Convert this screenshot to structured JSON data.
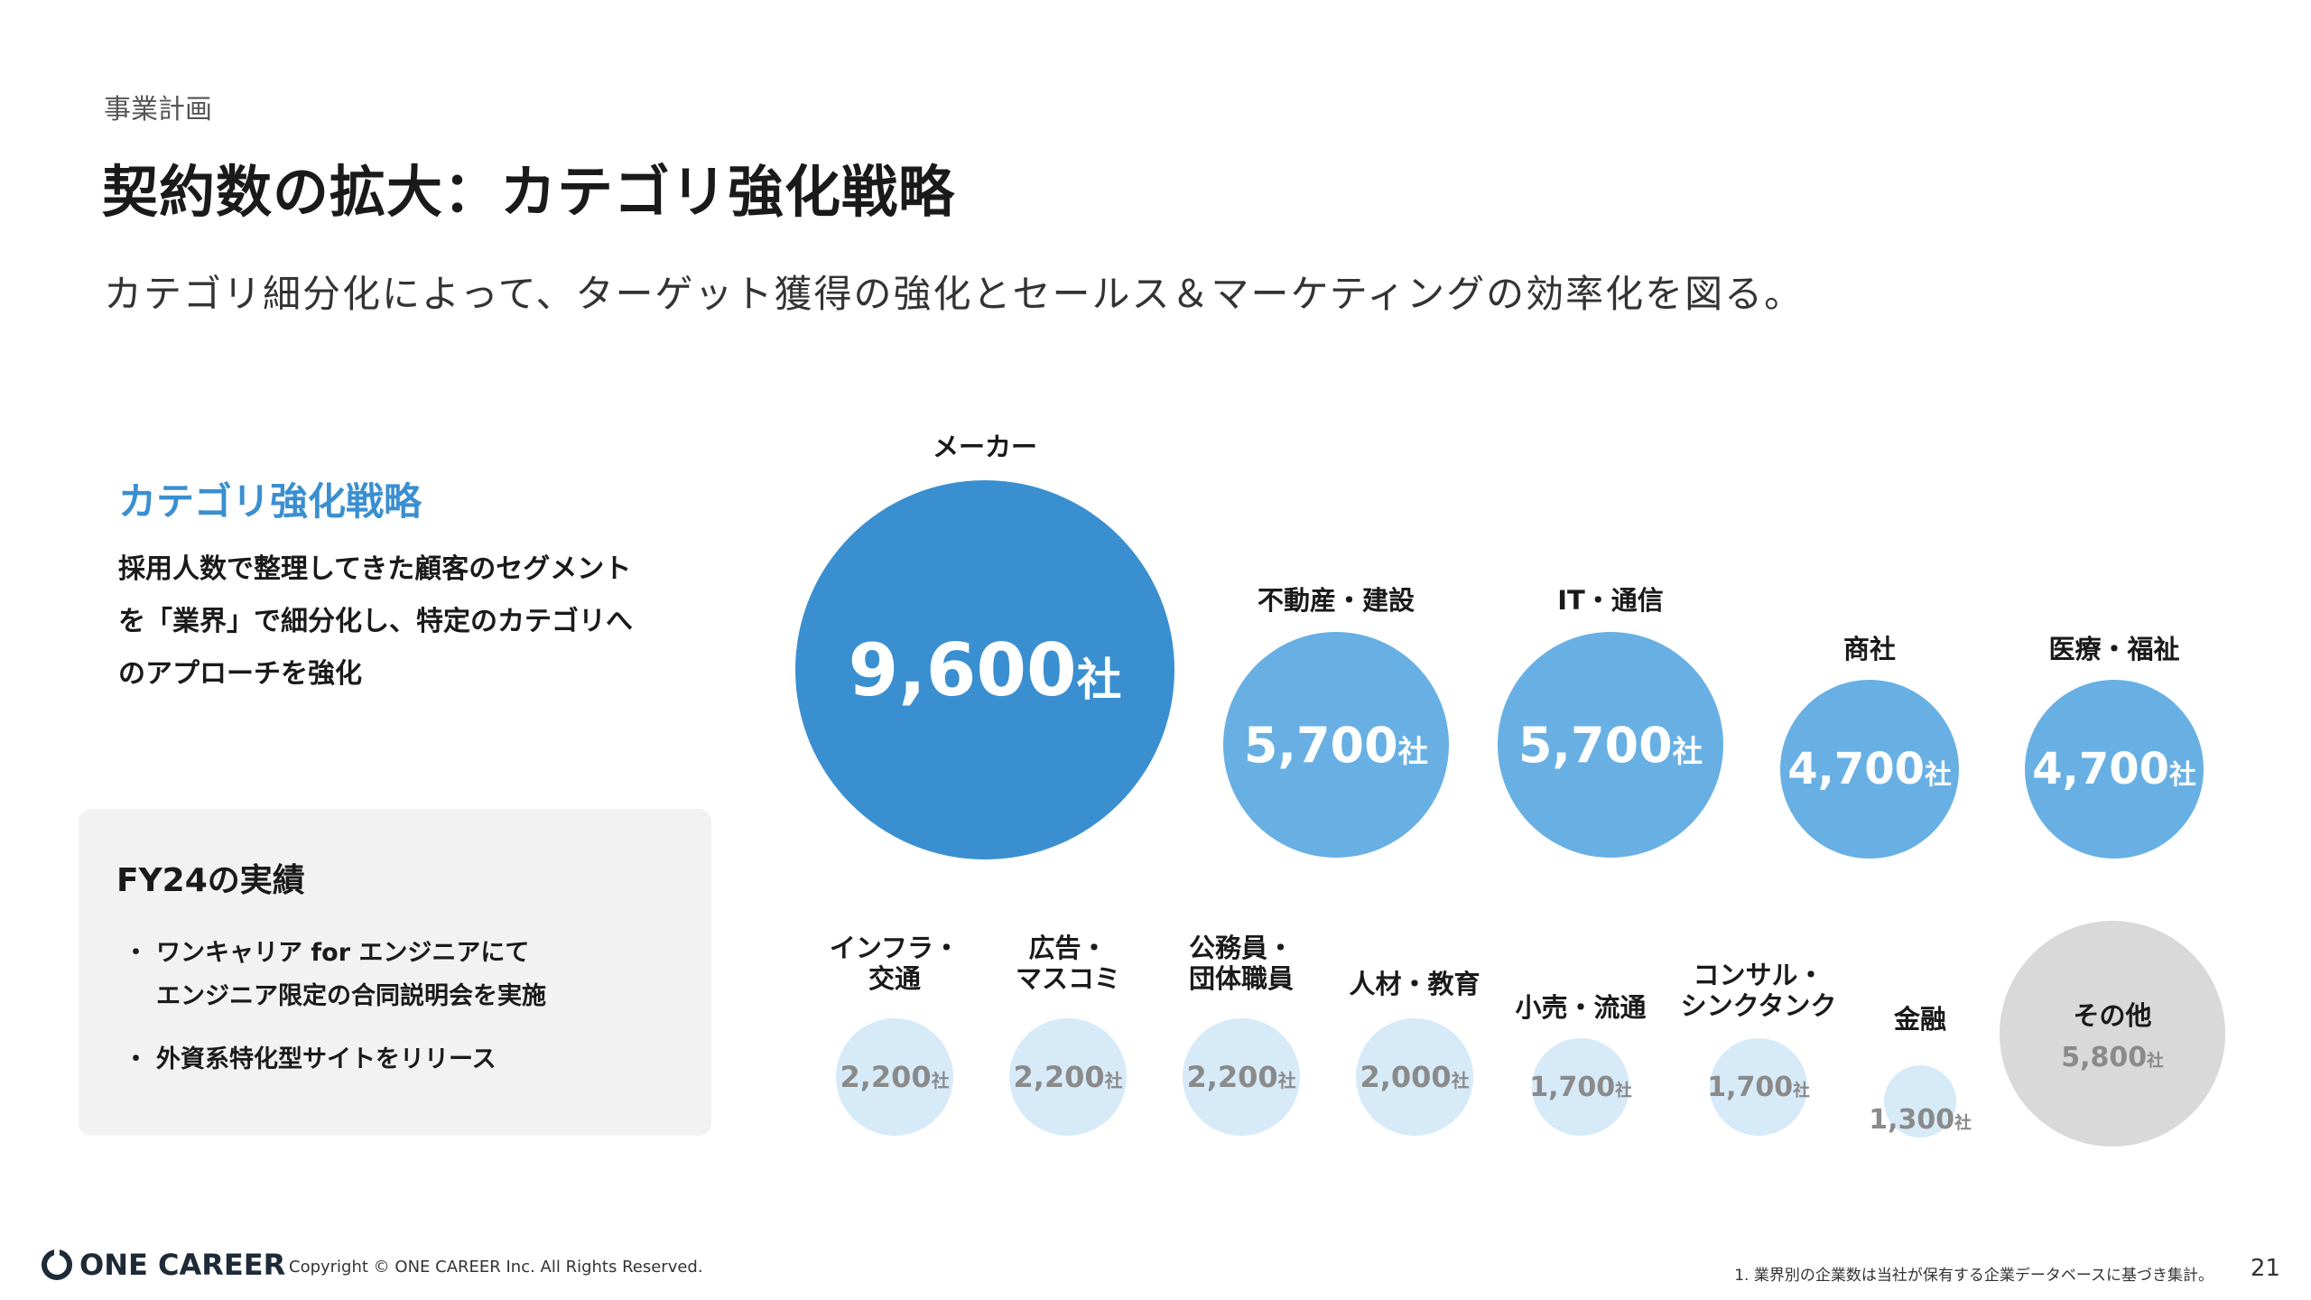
{
  "header": {
    "section": "事業計画",
    "title": "契約数の拡大：カテゴリ強化戦略",
    "subtitle": "カテゴリ細分化によって、ターゲット獲得の強化とセールス＆マーケティングの効率化を図る。"
  },
  "strategy": {
    "title": "カテゴリ強化戦略",
    "lines": [
      "採用人数で整理してきた顧客のセグメント",
      "を「業界」で細分化し、特定のカテゴリへ",
      "のアプローチを強化"
    ]
  },
  "results": {
    "title": "FY24の実績",
    "bullet": "・",
    "items": [
      [
        "ワンキャリア for エンジニアにて",
        "エンジニア限定の合同説明会を実施"
      ],
      [
        "外資系特化型サイトをリリース"
      ]
    ]
  },
  "bubbles": {
    "unit": "社",
    "colors": {
      "primary": "#3a8fd0",
      "secondary": "#68b0e4",
      "tertiary": "#d7eaf8",
      "other": "#d9d9d9"
    },
    "items": [
      {
        "label": [
          "メーカー"
        ],
        "value": "9,600",
        "tier": "primary"
      },
      {
        "label": [
          "不動産・建設"
        ],
        "value": "5,700",
        "tier": "secondary"
      },
      {
        "label": [
          "IT・通信"
        ],
        "value": "5,700",
        "tier": "secondary"
      },
      {
        "label": [
          "商社"
        ],
        "value": "4,700",
        "tier": "secondary"
      },
      {
        "label": [
          "医療・福祉"
        ],
        "value": "4,700",
        "tier": "secondary"
      },
      {
        "label": [
          "インフラ・",
          "交通"
        ],
        "value": "2,200",
        "tier": "tertiary"
      },
      {
        "label": [
          "広告・",
          "マスコミ"
        ],
        "value": "2,200",
        "tier": "tertiary"
      },
      {
        "label": [
          "公務員・",
          "団体職員"
        ],
        "value": "2,200",
        "tier": "tertiary"
      },
      {
        "label": [
          "人材・教育"
        ],
        "value": "2,000",
        "tier": "tertiary"
      },
      {
        "label": [
          "小売・流通"
        ],
        "value": "1,700",
        "tier": "tertiary"
      },
      {
        "label": [
          "コンサル・",
          "シンクタンク"
        ],
        "value": "1,700",
        "tier": "tertiary"
      },
      {
        "label": [
          "金融"
        ],
        "value": "1,300",
        "tier": "tertiary"
      },
      {
        "label": [
          "その他"
        ],
        "value": "5,800",
        "tier": "other"
      }
    ]
  },
  "footer": {
    "logo": "ONE CAREER",
    "copyright": "Copyright © ONE CAREER Inc. All Rights Reserved.",
    "footnote": "1. 業界別の企業数は当社が保有する企業データベースに基づき集計。",
    "page": "21"
  }
}
